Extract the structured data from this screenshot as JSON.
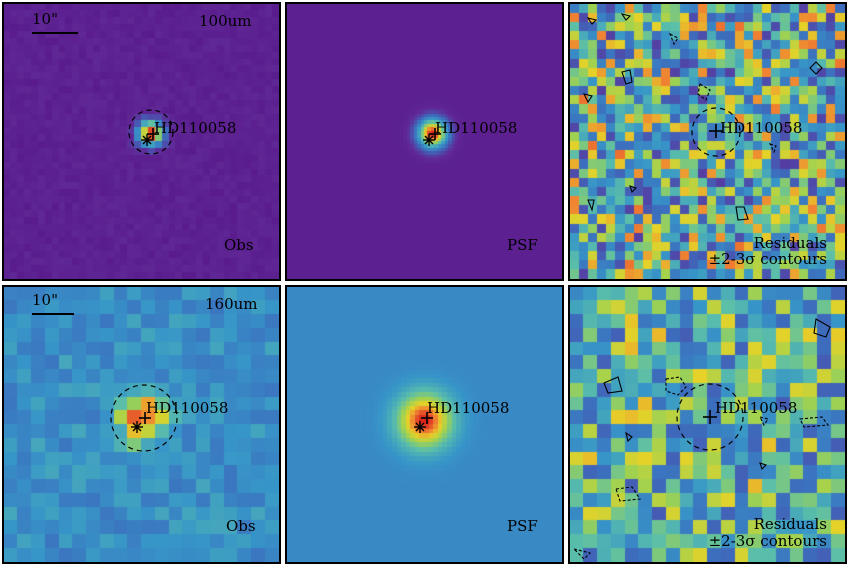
{
  "rows": [
    {
      "band": "100um",
      "scalebar": "10\"",
      "panels": [
        {
          "type": "obs",
          "corner": "Obs",
          "source": "HD110058"
        },
        {
          "type": "psf",
          "corner": "PSF",
          "source": "HD110058"
        },
        {
          "type": "res",
          "corner": "Residuals",
          "corner2": "±2-3σ contours",
          "source": "HD110058"
        }
      ]
    },
    {
      "band": "160um",
      "scalebar": "10\"",
      "panels": [
        {
          "type": "obs",
          "corner": "Obs",
          "source": "HD110058"
        },
        {
          "type": "psf",
          "corner": "PSF",
          "source": "HD110058"
        },
        {
          "type": "res",
          "corner": "Residuals",
          "corner2": "±2-3σ contours",
          "source": "HD110058"
        }
      ]
    }
  ],
  "colors": {
    "low": "#5a1f8a",
    "mid": "#3b8fc7",
    "green": "#a6d44e",
    "high": "#f08030",
    "peak": "#d02020"
  }
}
